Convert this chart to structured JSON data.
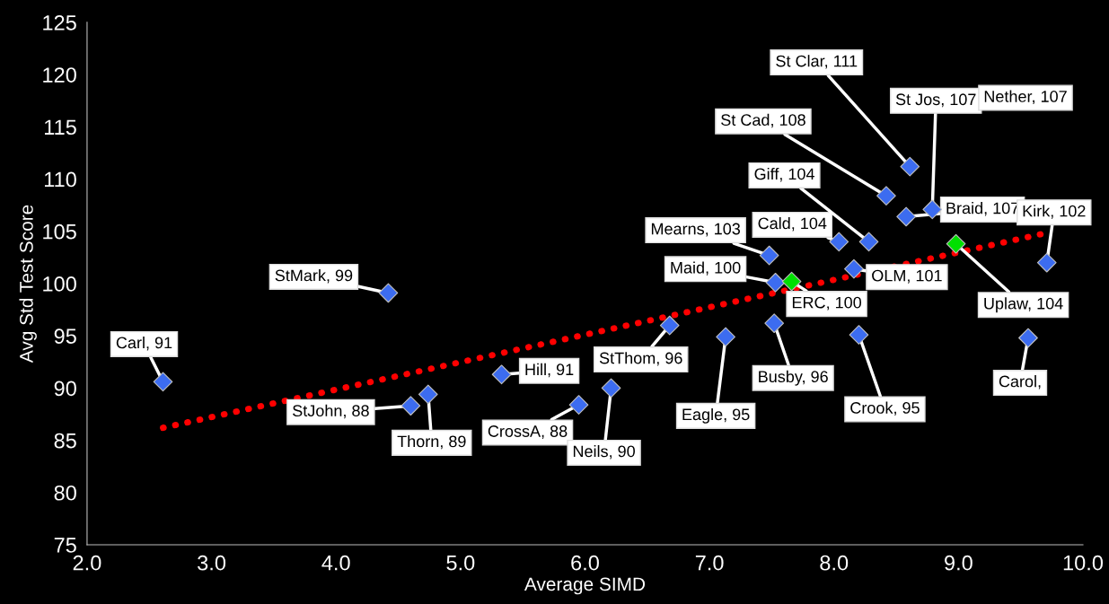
{
  "chart_data": {
    "type": "scatter",
    "xlabel": "Average SIMD",
    "ylabel": "Avg Std Test Score",
    "xlim": [
      2,
      10
    ],
    "xticks": [
      {
        "value": 2,
        "label": "2.0"
      },
      {
        "value": 3,
        "label": "3.0"
      },
      {
        "value": 4,
        "label": "4.0"
      },
      {
        "value": 5,
        "label": "5.0"
      },
      {
        "value": 6,
        "label": "6.0"
      },
      {
        "value": 7,
        "label": "7.0"
      },
      {
        "value": 8,
        "label": "8.0"
      },
      {
        "value": 9,
        "label": "9.0"
      },
      {
        "value": 10,
        "label": "10.0"
      }
    ],
    "ylim": [
      75,
      125
    ],
    "yticks": [
      75,
      80,
      85,
      90,
      95,
      100,
      105,
      110,
      115,
      120,
      125
    ],
    "grid": false,
    "legend": false,
    "marker": "diamond",
    "series": [
      {
        "type": "scatter",
        "color": "#3c6cf0",
        "x": [
          2.61,
          4.42,
          4.6,
          4.74,
          5.33,
          5.95,
          6.21,
          6.68,
          7.13,
          7.52,
          7.53,
          7.48,
          8.04,
          8.28,
          8.16,
          8.2,
          8.42,
          8.61,
          8.79,
          8.58,
          9.71,
          9.56
        ],
        "values": [
          90.6,
          99.1,
          88.3,
          89.4,
          91.3,
          88.4,
          90.0,
          96.0,
          94.9,
          96.2,
          100.1,
          102.7,
          104.0,
          104.0,
          101.4,
          95.1,
          108.4,
          111.2,
          107.1,
          106.4,
          102.0,
          94.8
        ]
      },
      {
        "type": "scatter",
        "color": "#00e000",
        "x": [
          7.66,
          8.98
        ],
        "values": [
          100.2,
          103.8
        ]
      },
      {
        "type": "line",
        "color": "#ff0000",
        "line_style": "dotted",
        "marker": "none",
        "x": [
          2.61,
          9.69
        ],
        "values": [
          86.2,
          104.8
        ]
      }
    ],
    "annotations": [
      {
        "text": "Carl, 91",
        "x": 2.61,
        "y": 90.6
      },
      {
        "text": "StMark, 99",
        "x": 4.42,
        "y": 99.1
      },
      {
        "text": "StJohn, 88",
        "x": 4.6,
        "y": 88.3
      },
      {
        "text": "Thorn, 89",
        "x": 4.74,
        "y": 89.4
      },
      {
        "text": "Hill, 91",
        "x": 5.33,
        "y": 91.3
      },
      {
        "text": "CrossA, 88",
        "x": 5.95,
        "y": 88.4
      },
      {
        "text": "Neils, 90",
        "x": 6.21,
        "y": 90.0
      },
      {
        "text": "StThom, 96",
        "x": 6.68,
        "y": 96.0
      },
      {
        "text": "Eagle, 95",
        "x": 7.13,
        "y": 94.9
      },
      {
        "text": "Busby, 96",
        "x": 7.52,
        "y": 96.2
      },
      {
        "text": "Maid, 100",
        "x": 7.53,
        "y": 100.1
      },
      {
        "text": "ERC, 100",
        "x": 7.66,
        "y": 100.2
      },
      {
        "text": "Mearns, 103",
        "x": 7.48,
        "y": 102.7
      },
      {
        "text": "Cald, 104",
        "x": 8.04,
        "y": 104.0
      },
      {
        "text": "Giff, 104",
        "x": 8.28,
        "y": 104.0
      },
      {
        "text": "OLM, 101",
        "x": 8.16,
        "y": 101.4
      },
      {
        "text": "Crook, 95",
        "x": 8.2,
        "y": 95.1
      },
      {
        "text": "St Cad, 108",
        "x": 8.42,
        "y": 108.4
      },
      {
        "text": "St Clar, 111",
        "x": 8.61,
        "y": 111.2
      },
      {
        "text": "St Jos, 107",
        "x": 8.79,
        "y": 107.1
      },
      {
        "text": "Braid, 107",
        "x": 8.58,
        "y": 106.4
      },
      {
        "text": "Uplaw, 104",
        "x": 8.98,
        "y": 103.8
      },
      {
        "text": "Kirk, 102",
        "x": 9.71,
        "y": 102.0
      },
      {
        "text": "Carol,",
        "x": 9.56,
        "y": 94.8
      },
      "Nether, 107"
    ]
  }
}
